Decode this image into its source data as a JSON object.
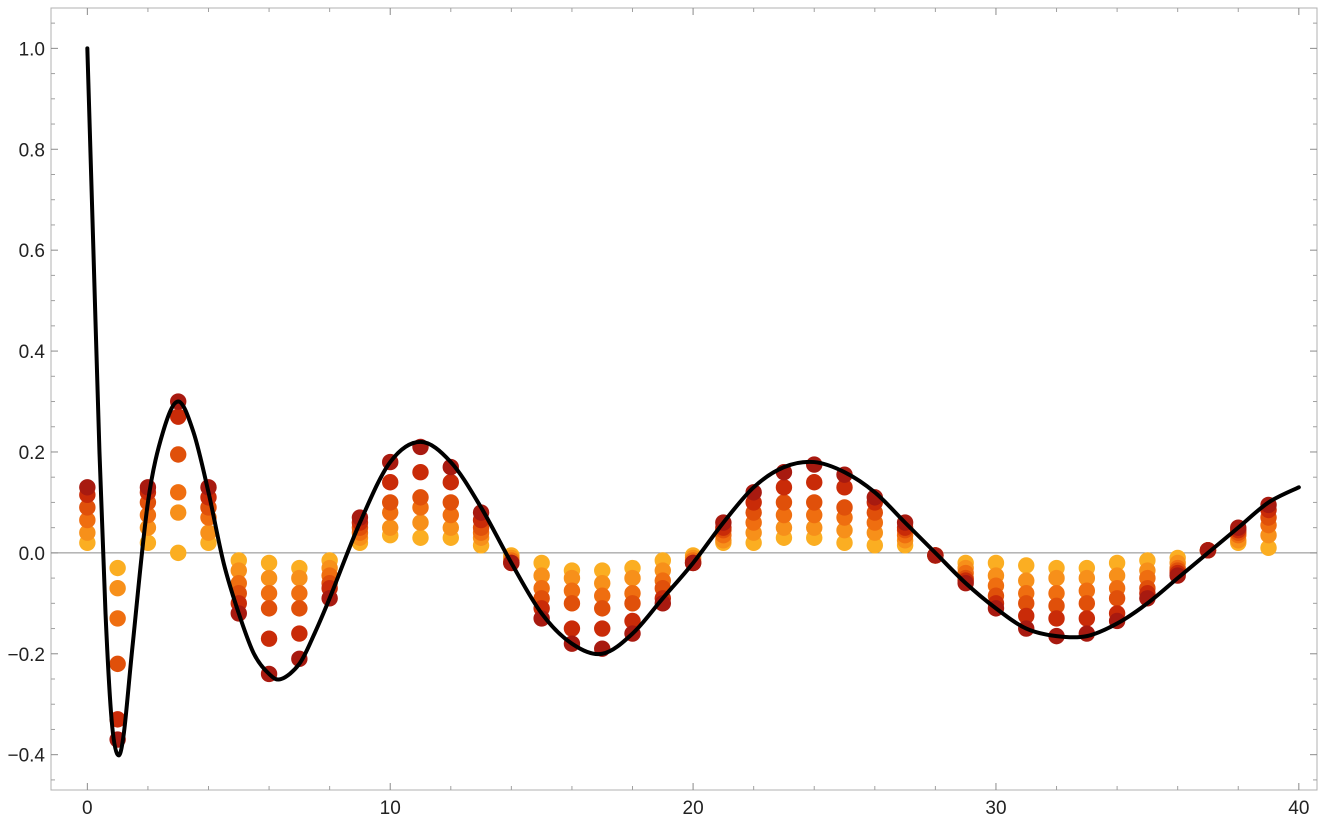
{
  "chart_data": {
    "type": "scatter",
    "title": "",
    "xlabel": "",
    "ylabel": "",
    "xlim": [
      -1.2,
      40.6
    ],
    "ylim": [
      -0.47,
      1.08
    ],
    "x_ticks": [
      0,
      10,
      20,
      30,
      40
    ],
    "x_tick_labels": [
      "0",
      "10",
      "20",
      "30",
      "40"
    ],
    "y_ticks": [
      -0.4,
      -0.2,
      0.0,
      0.2,
      0.4,
      0.6,
      0.8,
      1.0
    ],
    "y_tick_labels": [
      "−0.4",
      "−0.2",
      "0.0",
      "0.2",
      "0.4",
      "0.6",
      "0.8",
      "1.0"
    ],
    "grid": false,
    "frame": true,
    "zero_line": true,
    "legend": "none",
    "curve": {
      "description_color": "#000000",
      "x": [
        0.0,
        0.2,
        0.4,
        0.6,
        0.8,
        1.0,
        1.2,
        1.5,
        2.0,
        2.5,
        3.0,
        3.5,
        4.0,
        4.5,
        5.0,
        5.5,
        6.0,
        6.4,
        7.0,
        7.5,
        8.0,
        9.0,
        10.0,
        11.0,
        12.0,
        13.0,
        14.0,
        15.0,
        16.0,
        17.0,
        18.0,
        19.0,
        20.0,
        21.0,
        22.0,
        23.0,
        24.0,
        25.0,
        26.0,
        27.0,
        28.0,
        29.0,
        30.0,
        31.0,
        32.0,
        33.0,
        34.0,
        35.0,
        36.0,
        37.0,
        38.0,
        39.0,
        40.0
      ],
      "y": [
        1.0,
        0.6,
        0.2,
        -0.12,
        -0.33,
        -0.4,
        -0.36,
        -0.18,
        0.1,
        0.24,
        0.3,
        0.24,
        0.12,
        -0.02,
        -0.12,
        -0.2,
        -0.24,
        -0.25,
        -0.22,
        -0.16,
        -0.09,
        0.06,
        0.18,
        0.22,
        0.18,
        0.09,
        -0.02,
        -0.12,
        -0.18,
        -0.2,
        -0.16,
        -0.09,
        -0.02,
        0.06,
        0.13,
        0.17,
        0.18,
        0.16,
        0.12,
        0.06,
        0.0,
        -0.06,
        -0.11,
        -0.15,
        -0.165,
        -0.165,
        -0.14,
        -0.1,
        -0.05,
        0.0,
        0.05,
        0.1,
        0.13
      ]
    },
    "points": {
      "colors": [
        "#A81A10",
        "#C92B08",
        "#E0500A",
        "#EF6E10",
        "#F7901A",
        "#FBAE22"
      ],
      "x": [
        0,
        1,
        2,
        3,
        4,
        5,
        6,
        7,
        8,
        9,
        10,
        11,
        12,
        13,
        14,
        15,
        16,
        17,
        18,
        19,
        20,
        21,
        22,
        23,
        24,
        25,
        26,
        27,
        28,
        29,
        30,
        31,
        32,
        33,
        34,
        35,
        36,
        37,
        38,
        39
      ],
      "series": [
        {
          "values": [
            0.13,
            -0.37,
            0.13,
            0.3,
            0.13,
            -0.12,
            -0.24,
            -0.21,
            -0.09,
            0.07,
            0.18,
            0.21,
            0.17,
            0.08,
            -0.02,
            -0.13,
            -0.18,
            -0.19,
            -0.16,
            -0.1,
            -0.02,
            0.06,
            0.12,
            0.16,
            0.175,
            0.155,
            0.11,
            0.06,
            -0.005,
            -0.06,
            -0.11,
            -0.15,
            -0.165,
            -0.16,
            -0.135,
            -0.09,
            -0.045,
            0.005,
            0.05,
            0.095
          ]
        },
        {
          "values": [
            0.115,
            -0.33,
            0.12,
            0.27,
            0.11,
            -0.1,
            -0.17,
            -0.16,
            -0.07,
            0.06,
            0.14,
            0.16,
            0.14,
            0.065,
            -0.02,
            -0.11,
            -0.15,
            -0.15,
            -0.135,
            -0.09,
            -0.02,
            0.05,
            0.1,
            0.13,
            0.14,
            0.13,
            0.1,
            0.05,
            -0.005,
            -0.055,
            -0.1,
            -0.125,
            -0.13,
            -0.13,
            -0.12,
            -0.08,
            -0.04,
            0.005,
            0.045,
            0.085
          ]
        },
        {
          "values": [
            0.09,
            -0.22,
            0.1,
            0.195,
            0.09,
            -0.08,
            -0.11,
            -0.11,
            -0.06,
            0.05,
            0.1,
            0.11,
            0.1,
            0.05,
            -0.02,
            -0.09,
            -0.1,
            -0.11,
            -0.1,
            -0.07,
            -0.02,
            0.045,
            0.08,
            0.1,
            0.1,
            0.09,
            0.08,
            0.045,
            -0.005,
            -0.05,
            -0.085,
            -0.1,
            -0.105,
            -0.1,
            -0.09,
            -0.07,
            -0.035,
            0.005,
            0.04,
            0.07
          ]
        },
        {
          "values": [
            0.065,
            -0.13,
            0.075,
            0.12,
            0.07,
            -0.06,
            -0.08,
            -0.08,
            -0.045,
            0.04,
            0.08,
            0.09,
            0.075,
            0.04,
            -0.015,
            -0.07,
            -0.075,
            -0.085,
            -0.08,
            -0.055,
            -0.015,
            0.035,
            0.06,
            0.075,
            0.075,
            0.07,
            0.06,
            0.035,
            -0.005,
            -0.04,
            -0.065,
            -0.08,
            -0.08,
            -0.075,
            -0.07,
            -0.05,
            -0.03,
            0.005,
            0.035,
            0.055
          ]
        },
        {
          "values": [
            0.04,
            -0.07,
            0.05,
            0.08,
            0.04,
            -0.035,
            -0.05,
            -0.05,
            -0.03,
            0.03,
            0.05,
            0.06,
            0.05,
            0.03,
            -0.01,
            -0.045,
            -0.05,
            -0.06,
            -0.05,
            -0.035,
            -0.01,
            0.025,
            0.04,
            0.05,
            0.05,
            0.045,
            0.04,
            0.025,
            -0.005,
            -0.03,
            -0.045,
            -0.055,
            -0.05,
            -0.05,
            -0.045,
            -0.035,
            -0.02,
            0.005,
            0.025,
            0.035
          ]
        },
        {
          "values": [
            0.02,
            -0.03,
            0.02,
            0.0,
            0.02,
            -0.015,
            -0.02,
            -0.03,
            -0.015,
            0.02,
            0.035,
            0.03,
            0.03,
            0.015,
            -0.005,
            -0.02,
            -0.035,
            -0.035,
            -0.03,
            -0.015,
            -0.005,
            0.02,
            0.02,
            0.03,
            0.03,
            0.02,
            0.015,
            0.015,
            -0.005,
            -0.02,
            -0.02,
            -0.025,
            -0.03,
            -0.03,
            -0.02,
            -0.015,
            -0.01,
            0.005,
            0.02,
            0.01
          ]
        }
      ]
    }
  }
}
